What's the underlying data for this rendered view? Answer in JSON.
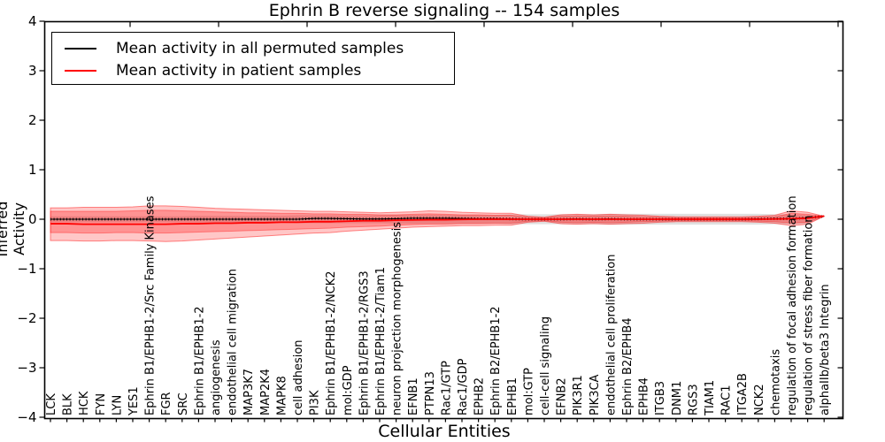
{
  "chart_data": {
    "type": "area",
    "title": "Ephrin B reverse signaling -- 154 samples",
    "xlabel": "Cellular Entities",
    "ylabel": "Inferred Activity",
    "ylim": [
      -4,
      4
    ],
    "ytick_values": [
      4,
      3,
      2,
      1,
      0,
      -1,
      -2,
      -3,
      -4
    ],
    "ytick_labels": [
      "4",
      "3",
      "2",
      "1",
      "0",
      "−1",
      "−2",
      "−3",
      "−4"
    ],
    "grid": false,
    "legend_position": "upper left",
    "legend": [
      {
        "label": "Mean activity in all permuted samples",
        "color": "#000000"
      },
      {
        "label": "Mean activity in patient samples",
        "color": "#ff0000"
      }
    ],
    "categories": [
      "LCK",
      "BLK",
      "HCK",
      "FYN",
      "LYN",
      "YES1",
      "Ephrin B1/EPHB1-2/Src Family Kinases",
      "FGR",
      "SRC",
      "Ephrin B1/EPHB1-2",
      "angiogenesis",
      "endothelial cell migration",
      "MAP3K7",
      "MAP2K4",
      "MAPK8",
      "cell adhesion",
      "PI3K",
      "Ephrin B1/EPHB1-2/NCK2",
      "mol:GDP",
      "Ephrin B1/EPHB1-2/RGS3",
      "Ephrin B1/EPHB1-2/Tiam1",
      "neuron projection morphogenesis",
      "EFNB1",
      "PTPN13",
      "Rac1/GTP",
      "Rac1/GDP",
      "EPHB2",
      "Ephrin B2/EPHB1-2",
      "EPHB1",
      "mol:GTP",
      "cell-cell signaling",
      "EFNB2",
      "PIK3R1",
      "PIK3CA",
      "endothelial cell proliferation",
      "Ephrin B2/EPHB4",
      "EPHB4",
      "ITGB3",
      "DNM1",
      "RGS3",
      "TIAM1",
      "RAC1",
      "ITGA2B",
      "NCK2",
      "chemotaxis",
      "regulation of focal adhesion formation",
      "regulation of stress fiber formation",
      "alphaIIb/beta3 Integrin"
    ],
    "series": [
      {
        "name": "Mean activity in all permuted samples",
        "color": "#000000",
        "values": [
          0,
          0,
          0,
          0,
          0,
          0,
          0,
          0,
          0,
          0,
          0,
          0,
          0,
          0,
          0,
          0,
          0.015,
          0.015,
          0.01,
          0.005,
          0.005,
          0.01,
          0.02,
          0.02,
          0.02,
          0.015,
          0.01,
          0.01,
          0.005,
          0,
          0,
          0,
          0.005,
          0,
          0.005,
          0,
          0,
          0,
          0,
          0,
          0,
          0,
          0,
          0.005,
          0.01,
          0.01,
          0.03,
          0.06
        ]
      },
      {
        "name": "Mean activity in patient samples",
        "color": "#ff0000",
        "values": [
          -0.09,
          -0.09,
          -0.1,
          -0.1,
          -0.1,
          -0.1,
          -0.1,
          -0.1,
          -0.09,
          -0.09,
          -0.08,
          -0.08,
          -0.07,
          -0.07,
          -0.06,
          -0.06,
          -0.05,
          -0.05,
          -0.04,
          -0.03,
          -0.03,
          -0.02,
          -0.015,
          -0.01,
          -0.01,
          -0.005,
          0,
          0,
          0,
          0,
          0,
          0,
          0,
          0,
          0,
          0,
          0,
          0,
          0,
          0,
          0,
          0,
          0,
          0,
          0.005,
          0.01,
          0.02,
          0.065
        ]
      }
    ],
    "bands": [
      {
        "name": "permuted-std-band",
        "color": "rgba(130,130,130,0.25)",
        "edge": "none",
        "upper": [
          0.06,
          0.06,
          0.06,
          0.06,
          0.06,
          0.06,
          0.06,
          0.06,
          0.06,
          0.07,
          0.07,
          0.07,
          0.07,
          0.07,
          0.07,
          0.08,
          0.08,
          0.08,
          0.08,
          0.08,
          0.08,
          0.09,
          0.09,
          0.09,
          0.09,
          0.09,
          0.09,
          0.09,
          0.1,
          0.1,
          0.1,
          0.1,
          0.1,
          0.1,
          0.11,
          0.11,
          0.11,
          0.11,
          0.11,
          0.11,
          0.11,
          0.11,
          0.11,
          0.11,
          0.1,
          0.1,
          0.09,
          0.05
        ],
        "lower": [
          -0.06,
          -0.06,
          -0.06,
          -0.06,
          -0.06,
          -0.06,
          -0.06,
          -0.06,
          -0.06,
          -0.07,
          -0.07,
          -0.07,
          -0.07,
          -0.07,
          -0.07,
          -0.08,
          -0.08,
          -0.08,
          -0.08,
          -0.08,
          -0.08,
          -0.09,
          -0.09,
          -0.09,
          -0.09,
          -0.09,
          -0.09,
          -0.09,
          -0.1,
          -0.1,
          -0.1,
          -0.1,
          -0.1,
          -0.1,
          -0.11,
          -0.11,
          -0.11,
          -0.11,
          -0.11,
          -0.11,
          -0.11,
          -0.11,
          -0.11,
          -0.11,
          -0.1,
          -0.1,
          -0.09,
          0.05
        ]
      },
      {
        "name": "patient-outer-band",
        "color": "rgba(255,0,0,0.22)",
        "edge": "rgba(255,0,0,0.45)",
        "upper": [
          0.23,
          0.23,
          0.24,
          0.24,
          0.24,
          0.25,
          0.27,
          0.27,
          0.26,
          0.24,
          0.22,
          0.21,
          0.2,
          0.19,
          0.18,
          0.17,
          0.16,
          0.16,
          0.15,
          0.14,
          0.13,
          0.14,
          0.15,
          0.17,
          0.16,
          0.14,
          0.13,
          0.12,
          0.12,
          0.06,
          0.04,
          0.09,
          0.1,
          0.09,
          0.1,
          0.09,
          0.08,
          0.06,
          0.05,
          0.05,
          0.05,
          0.05,
          0.05,
          0.06,
          0.08,
          0.17,
          0.14,
          0.06
        ],
        "lower": [
          -0.43,
          -0.43,
          -0.44,
          -0.44,
          -0.43,
          -0.43,
          -0.44,
          -0.45,
          -0.44,
          -0.42,
          -0.4,
          -0.38,
          -0.36,
          -0.34,
          -0.32,
          -0.3,
          -0.28,
          -0.27,
          -0.24,
          -0.22,
          -0.2,
          -0.18,
          -0.16,
          -0.15,
          -0.14,
          -0.13,
          -0.13,
          -0.12,
          -0.12,
          -0.06,
          -0.04,
          -0.09,
          -0.1,
          -0.09,
          -0.1,
          -0.09,
          -0.08,
          -0.06,
          -0.05,
          -0.05,
          -0.05,
          -0.05,
          -0.05,
          -0.06,
          -0.08,
          -0.13,
          -0.1,
          0.06
        ]
      },
      {
        "name": "patient-inner-band",
        "color": "rgba(255,0,0,0.26)",
        "edge": "rgba(255,0,0,0.35)",
        "upper": [
          0.16,
          0.16,
          0.16,
          0.16,
          0.16,
          0.17,
          0.18,
          0.18,
          0.17,
          0.16,
          0.15,
          0.14,
          0.13,
          0.13,
          0.12,
          0.12,
          0.11,
          0.11,
          0.1,
          0.1,
          0.09,
          0.09,
          0.1,
          0.11,
          0.1,
          0.09,
          0.09,
          0.08,
          0.08,
          0.04,
          0.03,
          0.06,
          0.07,
          0.06,
          0.07,
          0.06,
          0.05,
          0.04,
          0.03,
          0.03,
          0.03,
          0.03,
          0.03,
          0.04,
          0.05,
          0.12,
          0.1,
          0.06
        ],
        "lower": [
          -0.27,
          -0.27,
          -0.28,
          -0.28,
          -0.27,
          -0.27,
          -0.28,
          -0.28,
          -0.27,
          -0.26,
          -0.25,
          -0.24,
          -0.23,
          -0.22,
          -0.21,
          -0.2,
          -0.19,
          -0.18,
          -0.16,
          -0.15,
          -0.14,
          -0.12,
          -0.11,
          -0.1,
          -0.1,
          -0.09,
          -0.09,
          -0.08,
          -0.08,
          -0.04,
          -0.03,
          -0.06,
          -0.07,
          -0.06,
          -0.07,
          -0.06,
          -0.05,
          -0.04,
          -0.03,
          -0.03,
          -0.03,
          -0.03,
          -0.03,
          -0.04,
          -0.05,
          -0.08,
          -0.06,
          0.06
        ]
      }
    ]
  }
}
